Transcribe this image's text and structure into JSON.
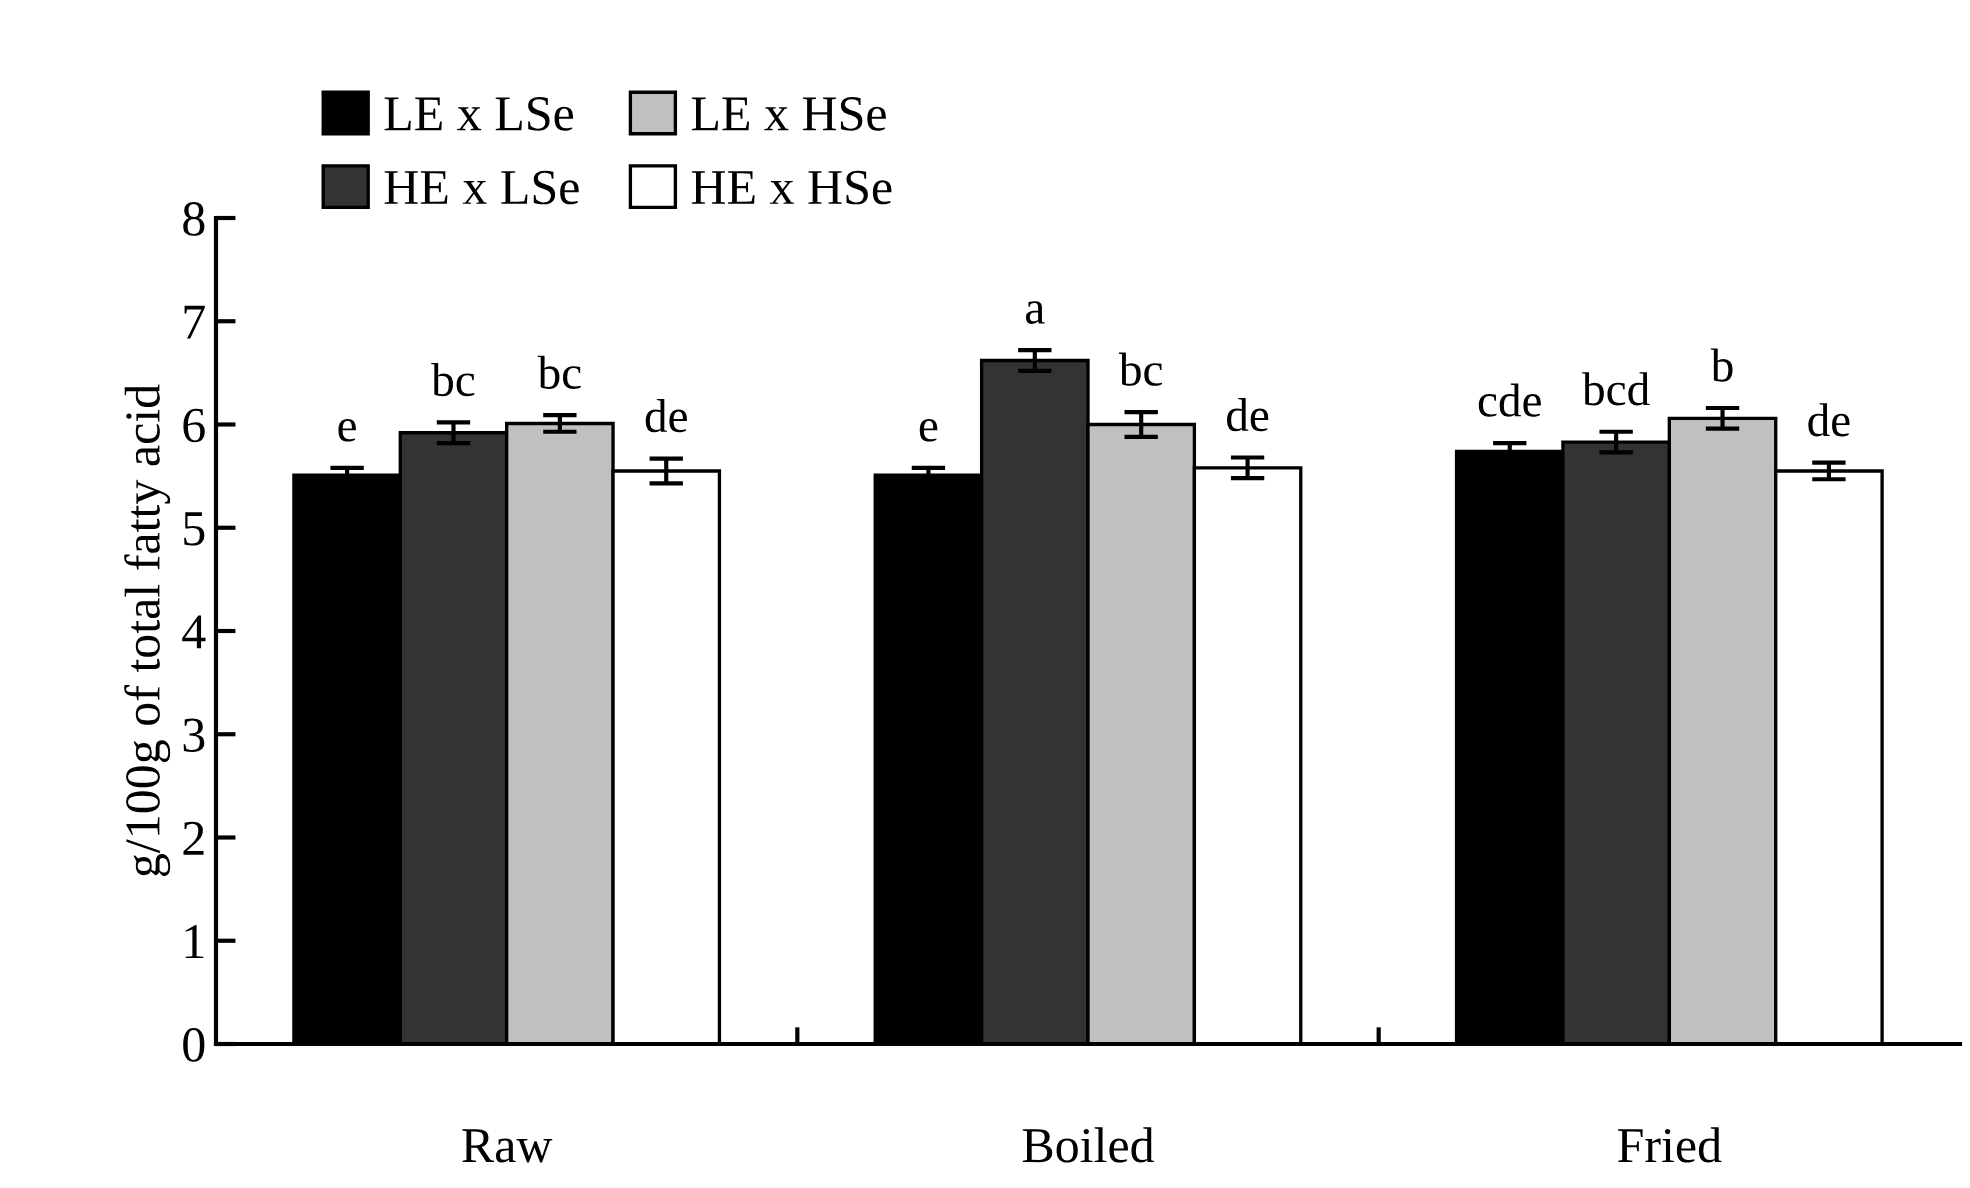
{
  "chart_data": {
    "type": "bar",
    "ylabel": "g/100g of total fatty acid",
    "categories": [
      "Raw",
      "Boiled",
      "Fried"
    ],
    "series": [
      {
        "name": "LE x LSe",
        "color": "#000000",
        "values": [
          5.51,
          5.51,
          5.74
        ],
        "errors": [
          0.07,
          0.07,
          0.08
        ],
        "value_labels": [
          "e",
          "e",
          "cde"
        ]
      },
      {
        "name": "HE x LSe",
        "color": "#333333",
        "values": [
          5.92,
          6.62,
          5.83
        ],
        "errors": [
          0.1,
          0.1,
          0.1
        ],
        "value_labels": [
          "bc",
          "a",
          "bcd"
        ]
      },
      {
        "name": "LE x HSe",
        "color": "#c0c0c0",
        "values": [
          6.01,
          6.0,
          6.06
        ],
        "errors": [
          0.08,
          0.12,
          0.1
        ],
        "value_labels": [
          "bc",
          "bc",
          "b"
        ]
      },
      {
        "name": "HE x HSe",
        "color": "#ffffff",
        "values": [
          5.55,
          5.58,
          5.55
        ],
        "errors": [
          0.12,
          0.1,
          0.08
        ],
        "value_labels": [
          "de",
          "de",
          "de"
        ]
      }
    ],
    "ylim": [
      0,
      8
    ],
    "yticks": [
      0,
      1,
      2,
      3,
      4,
      5,
      6,
      7,
      8
    ],
    "grid": false,
    "legend": "top left"
  }
}
